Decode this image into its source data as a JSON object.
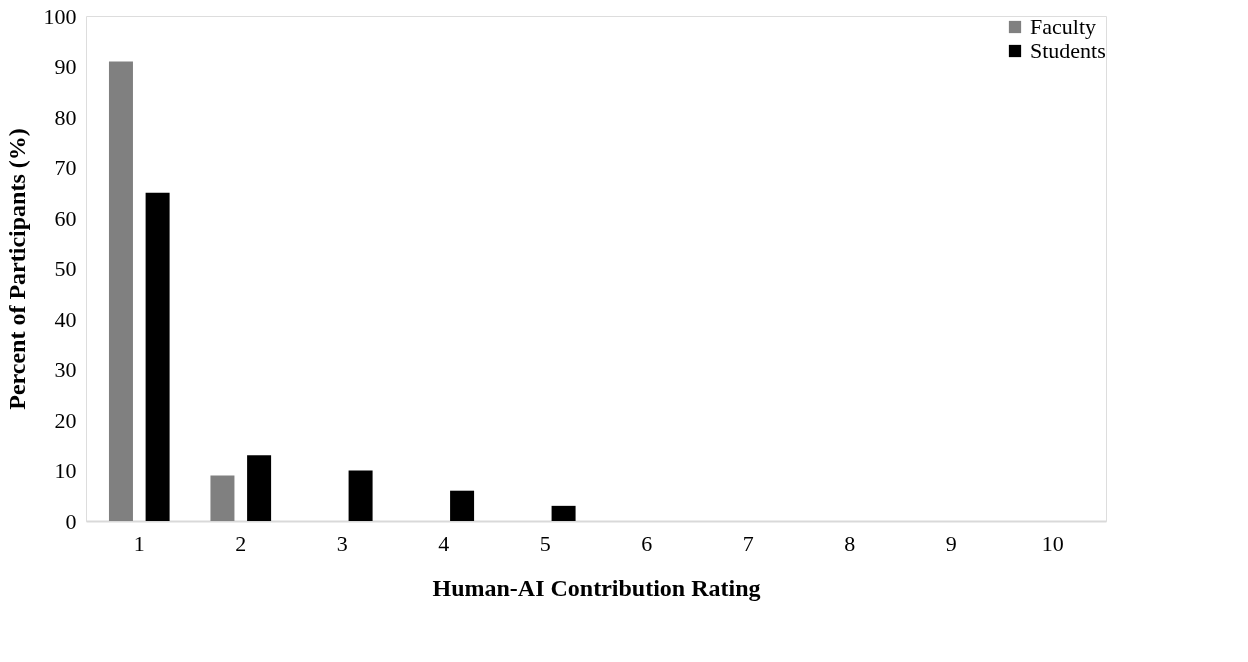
{
  "chart_data": {
    "type": "bar",
    "xlabel": "Human-AI Contribution Rating",
    "ylabel": "Percent of Participants (%)",
    "categories": [
      "1",
      "2",
      "3",
      "4",
      "5",
      "6",
      "7",
      "8",
      "9",
      "10"
    ],
    "series": [
      {
        "name": "Faculty",
        "color": "#808080",
        "values": [
          91,
          9,
          0,
          0,
          0,
          0,
          0,
          0,
          0,
          0
        ]
      },
      {
        "name": "Students",
        "color": "#000000",
        "values": [
          65,
          13,
          10,
          6,
          3,
          0,
          0,
          0,
          0,
          0
        ]
      }
    ],
    "ylim": [
      0,
      100
    ],
    "yticks": [
      0,
      10,
      20,
      30,
      40,
      50,
      60,
      70,
      80,
      90,
      100
    ],
    "grid": false,
    "legend": "top right"
  }
}
